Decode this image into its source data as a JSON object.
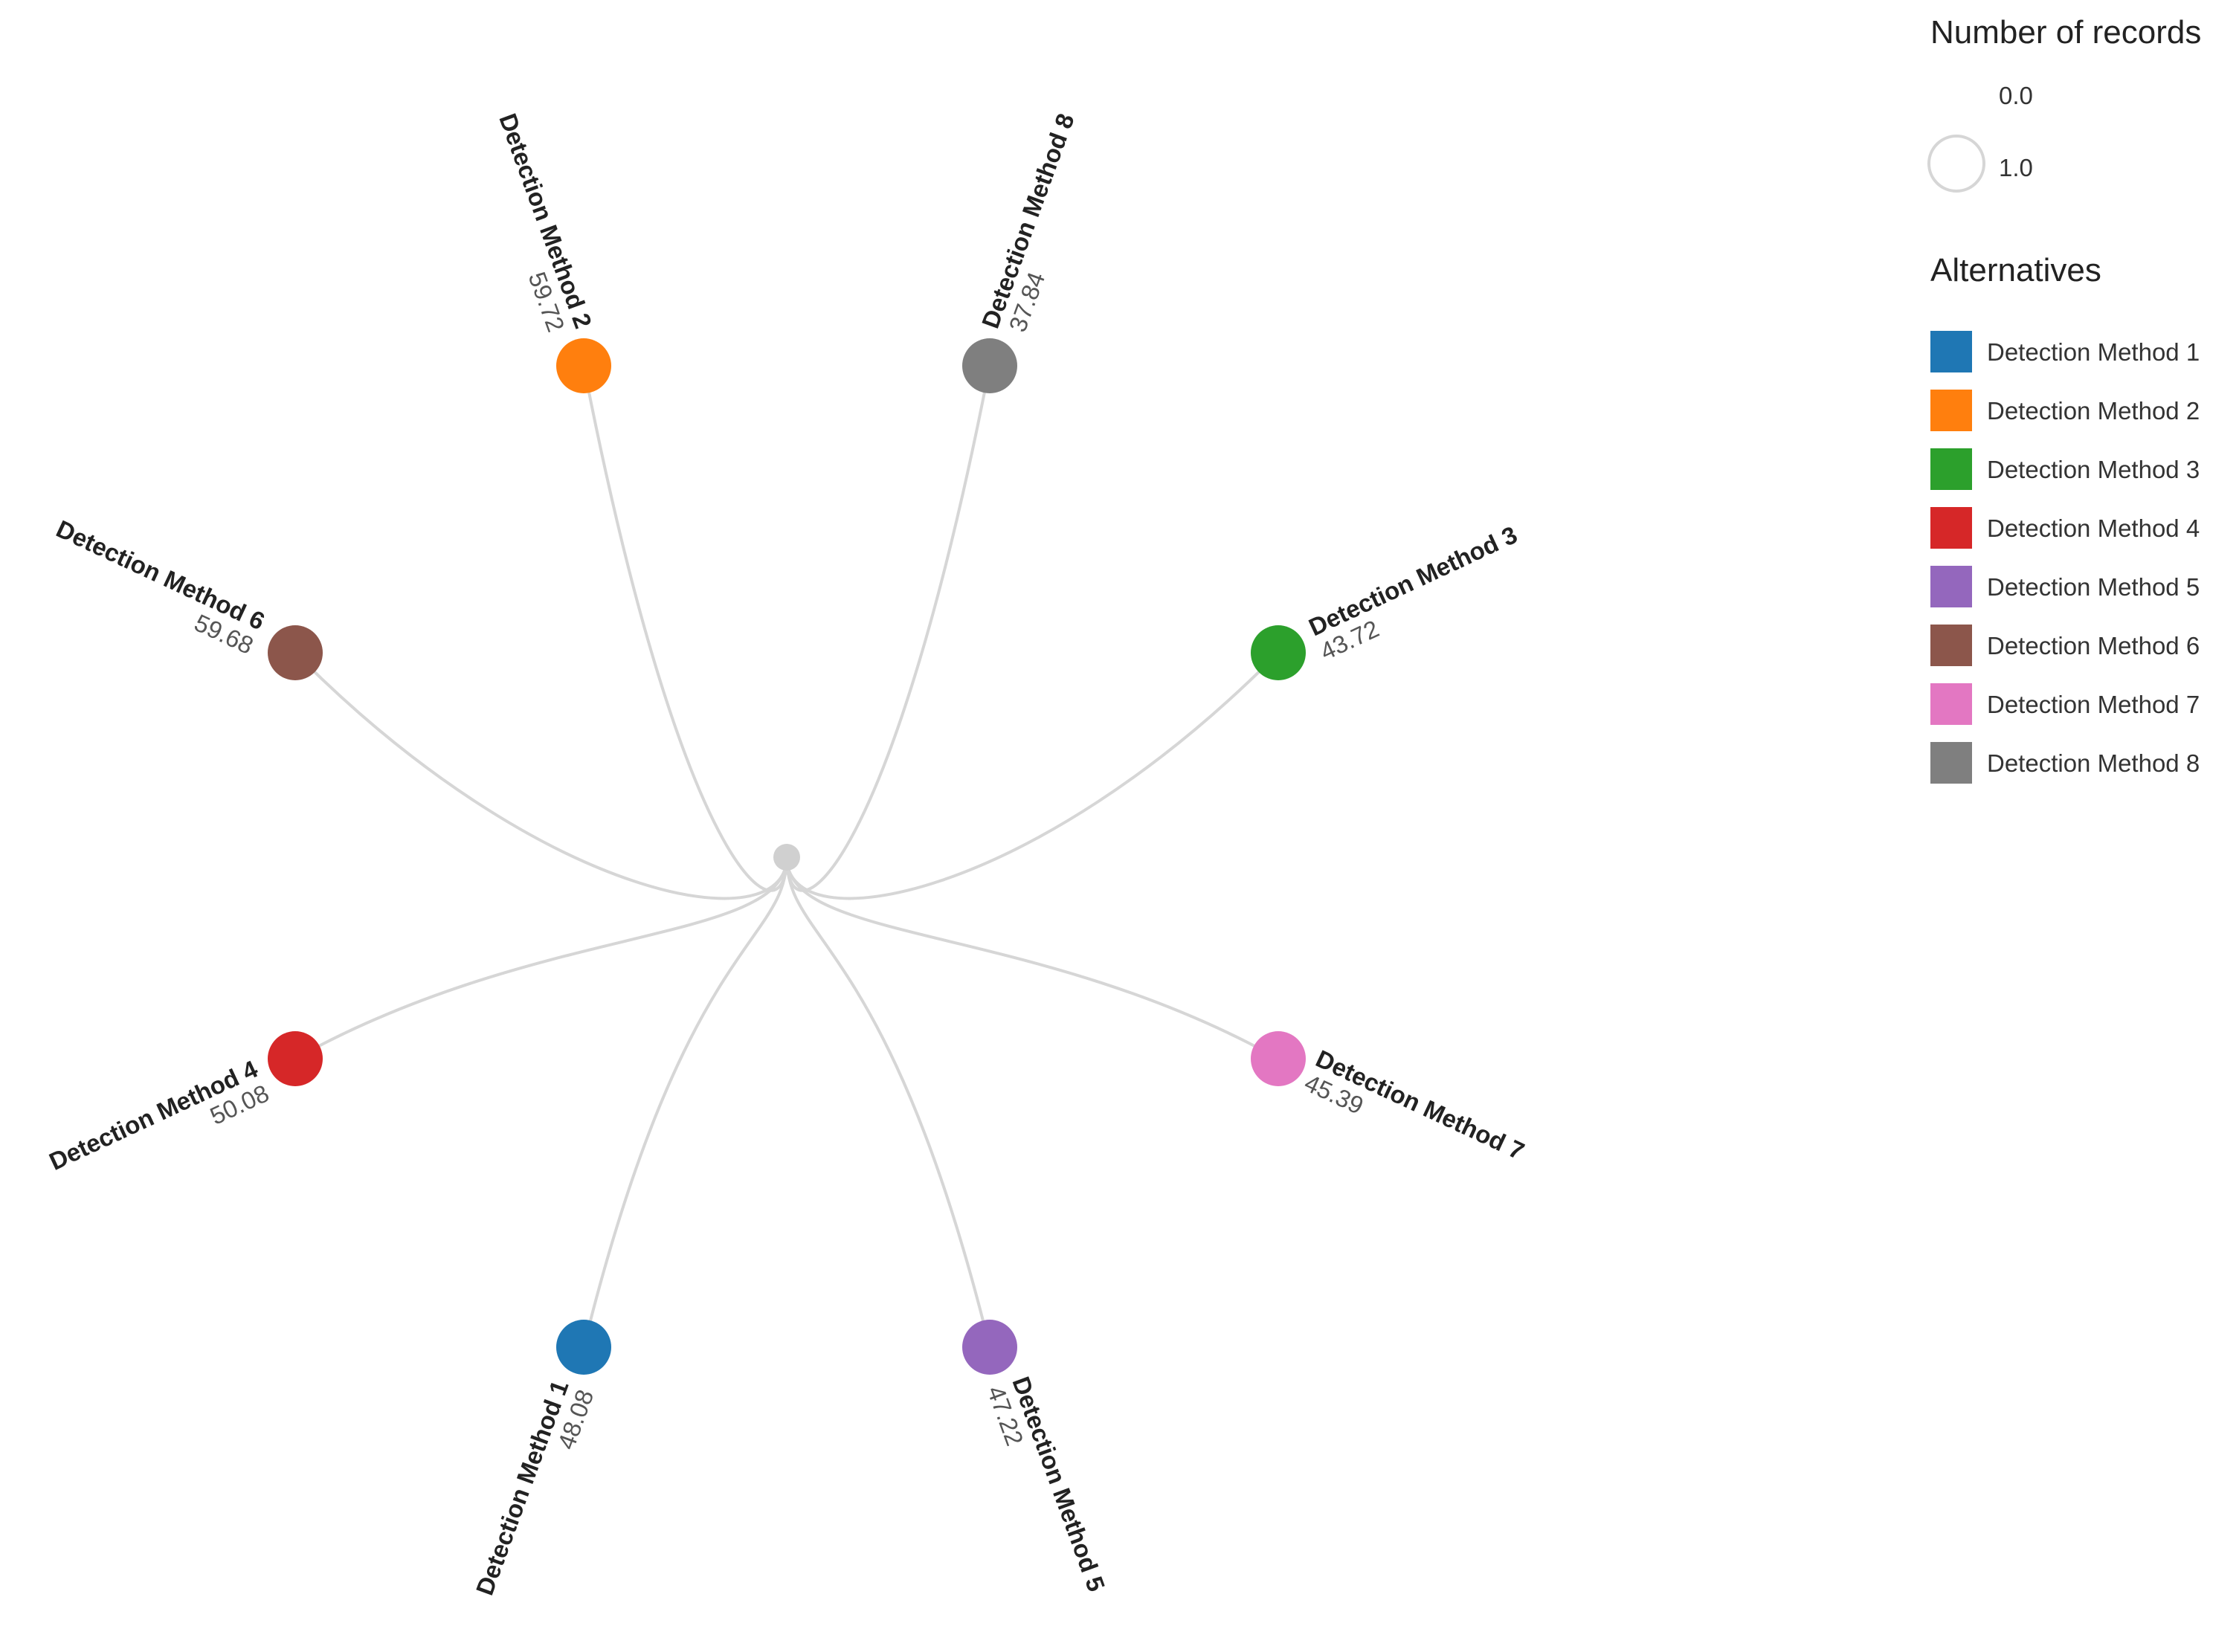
{
  "diagram": {
    "type": "radial-tree",
    "root": {
      "color": "#d0d0d0"
    },
    "link_color": "#d6d6d6",
    "nodes": [
      {
        "label": "Detection Method 2",
        "value": "59.72",
        "color": "#ff7f0e"
      },
      {
        "label": "Detection Method 8",
        "value": "37.84",
        "color": "#7f7f7f"
      },
      {
        "label": "Detection Method 3",
        "value": "43.72",
        "color": "#2ca02c"
      },
      {
        "label": "Detection Method 7",
        "value": "45.39",
        "color": "#e377c2"
      },
      {
        "label": "Detection Method 5",
        "value": "47.22",
        "color": "#9467bd"
      },
      {
        "label": "Detection Method 1",
        "value": "48.08",
        "color": "#1f77b4"
      },
      {
        "label": "Detection Method 4",
        "value": "50.08",
        "color": "#d62728"
      },
      {
        "label": "Detection Method 6",
        "value": "59.68",
        "color": "#8c564b"
      }
    ]
  },
  "legend": {
    "size_title": "Number of records",
    "size_items": [
      "0.0",
      "1.0"
    ],
    "color_title": "Alternatives",
    "color_items": [
      {
        "label": "Detection Method 1",
        "color": "#1f77b4"
      },
      {
        "label": "Detection Method 2",
        "color": "#ff7f0e"
      },
      {
        "label": "Detection Method 3",
        "color": "#2ca02c"
      },
      {
        "label": "Detection Method 4",
        "color": "#d62728"
      },
      {
        "label": "Detection Method 5",
        "color": "#9467bd"
      },
      {
        "label": "Detection Method 6",
        "color": "#8c564b"
      },
      {
        "label": "Detection Method 7",
        "color": "#e377c2"
      },
      {
        "label": "Detection Method 8",
        "color": "#7f7f7f"
      }
    ]
  }
}
